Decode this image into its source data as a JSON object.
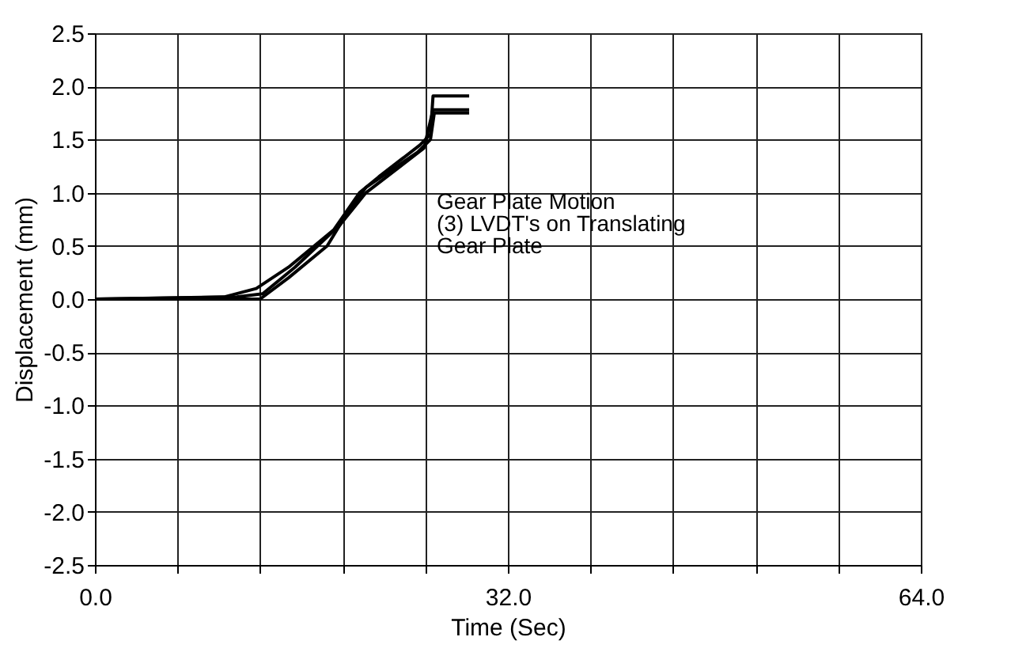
{
  "chart_data": {
    "type": "line",
    "xlabel": "Time (Sec)",
    "ylabel": "Displacement (mm)",
    "annotations": [
      "Gear Plate Motion\n(3) LVDT's on Translating\nGear Plate"
    ],
    "xlim": [
      0,
      64
    ],
    "ylim": [
      -2.5,
      2.5
    ],
    "xticks": [
      {
        "value": 0,
        "label": "0.0"
      },
      {
        "value": 6.4,
        "label": null
      },
      {
        "value": 12.8,
        "label": null
      },
      {
        "value": 19.2,
        "label": null
      },
      {
        "value": 25.6,
        "label": null
      },
      {
        "value": 32,
        "label": "32.0"
      },
      {
        "value": 38.4,
        "label": null
      },
      {
        "value": 44.8,
        "label": null
      },
      {
        "value": 51.2,
        "label": null
      },
      {
        "value": 57.6,
        "label": null
      },
      {
        "value": 64,
        "label": "64.0"
      }
    ],
    "yticks": [
      {
        "value": -2.5,
        "label": "-2.5"
      },
      {
        "value": -2,
        "label": "-2.0"
      },
      {
        "value": -1.5,
        "label": "-1.5"
      },
      {
        "value": -1,
        "label": "-1.0"
      },
      {
        "value": -0.5,
        "label": "-0.5"
      },
      {
        "value": 0,
        "label": "0.0"
      },
      {
        "value": 0.5,
        "label": "0.5"
      },
      {
        "value": 1,
        "label": "1.0"
      },
      {
        "value": 1.5,
        "label": "1.5"
      },
      {
        "value": 2,
        "label": "2.0"
      },
      {
        "value": 2.5,
        "label": "2.5"
      }
    ],
    "grid": true,
    "legend": false,
    "marker": "none",
    "line_style": "solid",
    "series": [
      {
        "color": "#000000",
        "x": [
          0,
          10,
          12.5,
          15,
          18.5,
          20.5,
          22,
          25.2,
          26,
          26.2,
          29
        ],
        "values": [
          0,
          0.02,
          0.1,
          0.3,
          0.65,
          1.0,
          1.15,
          1.45,
          1.55,
          1.91,
          1.91
        ]
      },
      {
        "color": "#000000",
        "x": [
          0,
          10,
          12.8,
          15,
          18,
          19.5,
          21,
          25,
          26,
          26.3,
          29
        ],
        "values": [
          0,
          0,
          0,
          0.2,
          0.5,
          0.8,
          1.05,
          1.38,
          1.5,
          1.75,
          1.75
        ]
      },
      {
        "color": "#000000",
        "x": [
          0,
          11,
          13,
          15.5,
          19,
          21,
          25.5,
          26.2,
          29
        ],
        "values": [
          0,
          0.02,
          0.05,
          0.3,
          0.7,
          1.0,
          1.42,
          1.78,
          1.78
        ]
      }
    ]
  }
}
